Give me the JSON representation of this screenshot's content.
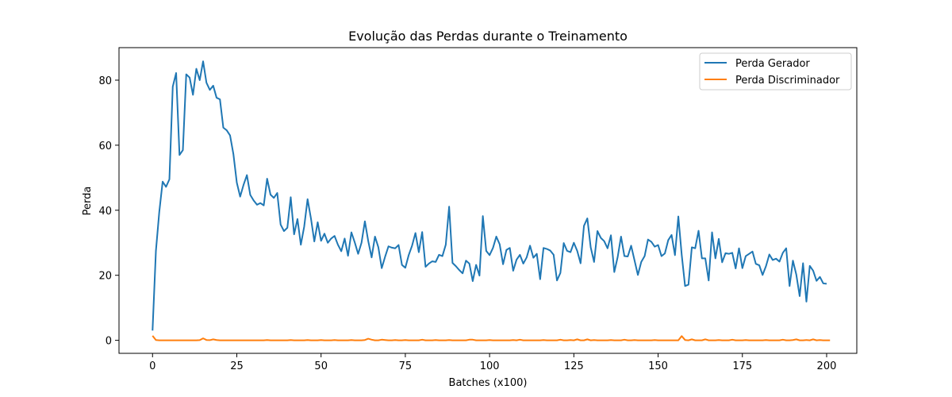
{
  "chart_data": {
    "type": "line",
    "title": "Evolução das Perdas durante o Treinamento",
    "xlabel": "Batches (x100)",
    "ylabel": "Perda",
    "xlim": [
      -9.95,
      208.95
    ],
    "ylim": [
      -4.0,
      90.0
    ],
    "xticks": [
      0,
      25,
      50,
      75,
      100,
      125,
      150,
      175,
      200
    ],
    "yticks": [
      0,
      20,
      40,
      60,
      80
    ],
    "grid": false,
    "legend_position": "top-right",
    "series": [
      {
        "name": "Perda Gerador",
        "color": "#1f77b4",
        "values": [
          3.0,
          27.5,
          39.5,
          48.8,
          47.2,
          49.5,
          78.0,
          82.2,
          57.0,
          58.5,
          81.8,
          80.8,
          75.5,
          83.5,
          80.0,
          85.8,
          79.2,
          77.0,
          78.3,
          74.6,
          74.1,
          65.4,
          64.6,
          63.0,
          57.2,
          48.5,
          44.2,
          47.8,
          50.8,
          44.7,
          43.0,
          41.7,
          42.2,
          41.5,
          49.7,
          44.8,
          43.8,
          45.3,
          35.6,
          33.6,
          34.6,
          44.0,
          32.6,
          37.3,
          29.4,
          35.0,
          43.4,
          37.5,
          30.4,
          36.3,
          30.6,
          32.8,
          30.0,
          31.3,
          32.1,
          29.4,
          27.4,
          31.3,
          26.0,
          33.2,
          30.1,
          26.6,
          30.0,
          36.6,
          30.5,
          25.5,
          31.9,
          28.6,
          22.2,
          25.7,
          28.9,
          28.5,
          28.3,
          29.3,
          23.2,
          22.3,
          26.2,
          29.1,
          33.0,
          27.1,
          33.3,
          22.6,
          23.6,
          24.3,
          24.1,
          26.3,
          25.9,
          29.4,
          41.1,
          23.8,
          22.8,
          21.6,
          20.6,
          24.5,
          23.6,
          18.2,
          23.2,
          19.9,
          38.2,
          27.5,
          26.2,
          28.4,
          31.9,
          29.5,
          23.4,
          27.8,
          28.4,
          21.4,
          24.8,
          26.3,
          23.6,
          25.5,
          29.1,
          25.4,
          26.6,
          18.8,
          28.4,
          28.1,
          27.6,
          26.3,
          18.4,
          20.7,
          29.9,
          27.5,
          27.1,
          30.0,
          27.5,
          23.7,
          35.2,
          37.5,
          28.6,
          24.1,
          33.6,
          31.5,
          30.5,
          28.3,
          32.3,
          21.0,
          25.6,
          31.9,
          25.9,
          25.8,
          29.1,
          24.6,
          20.1,
          24.1,
          25.9,
          31.0,
          30.3,
          28.8,
          29.3,
          25.9,
          26.7,
          30.8,
          32.4,
          26.2,
          38.1,
          26.3,
          16.7,
          17.1,
          28.6,
          28.3,
          33.7,
          25.2,
          25.2,
          18.4,
          33.2,
          25.2,
          31.2,
          24.0,
          26.8,
          26.6,
          26.9,
          22.1,
          28.3,
          22.2,
          25.9,
          26.6,
          27.3,
          23.5,
          23.1,
          20.1,
          22.8,
          26.4,
          24.7,
          25.1,
          24.2,
          26.9,
          28.3,
          16.7,
          24.5,
          20.2,
          13.6,
          23.7,
          11.9,
          22.9,
          21.4,
          18.3,
          19.5,
          17.5,
          17.4
        ]
      },
      {
        "name": "Perda Discriminador",
        "color": "#ff7f0e",
        "values": [
          1.4,
          0.1,
          0.0,
          0.0,
          0.0,
          0.0,
          0.0,
          0.0,
          0.0,
          0.0,
          0.0,
          0.0,
          0.0,
          0.0,
          0.05,
          0.6,
          0.1,
          0.05,
          0.3,
          0.1,
          0.0,
          0.0,
          0.0,
          0.0,
          0.0,
          0.0,
          0.0,
          0.0,
          0.0,
          0.0,
          0.0,
          0.0,
          0.0,
          0.0,
          0.1,
          0.0,
          0.0,
          0.0,
          0.0,
          0.0,
          0.0,
          0.1,
          0.0,
          0.0,
          0.0,
          0.0,
          0.1,
          0.0,
          0.0,
          0.0,
          0.1,
          0.0,
          0.0,
          0.0,
          0.1,
          0.0,
          0.0,
          0.0,
          0.0,
          0.1,
          0.0,
          0.0,
          0.0,
          0.1,
          0.5,
          0.2,
          0.0,
          0.0,
          0.2,
          0.1,
          0.0,
          0.0,
          0.1,
          0.0,
          0.0,
          0.1,
          0.0,
          0.0,
          0.0,
          0.0,
          0.2,
          0.0,
          0.0,
          0.0,
          0.1,
          0.0,
          0.0,
          0.0,
          0.1,
          0.0,
          0.0,
          0.0,
          0.0,
          0.0,
          0.2,
          0.2,
          0.0,
          0.0,
          0.0,
          0.0,
          0.1,
          0.0,
          0.0,
          0.0,
          0.0,
          0.0,
          0.0,
          0.1,
          0.0,
          0.2,
          0.0,
          0.0,
          0.0,
          0.0,
          0.0,
          0.0,
          0.1,
          0.0,
          0.0,
          0.0,
          0.0,
          0.2,
          0.0,
          0.0,
          0.1,
          0.0,
          0.3,
          0.0,
          0.0,
          0.3,
          0.0,
          0.1,
          0.0,
          0.0,
          0.0,
          0.0,
          0.1,
          0.0,
          0.0,
          0.0,
          0.2,
          0.0,
          0.0,
          0.1,
          0.0,
          0.0,
          0.0,
          0.0,
          0.0,
          0.1,
          0.0,
          0.0,
          0.0,
          0.0,
          0.0,
          0.0,
          0.0,
          1.3,
          0.1,
          0.0,
          0.3,
          0.0,
          0.0,
          0.0,
          0.3,
          0.0,
          0.0,
          0.0,
          0.1,
          0.0,
          0.0,
          0.0,
          0.2,
          0.0,
          0.0,
          0.0,
          0.1,
          0.0,
          0.0,
          0.0,
          0.0,
          0.0,
          0.1,
          0.0,
          0.0,
          0.0,
          0.0,
          0.2,
          0.0,
          0.0,
          0.1,
          0.3,
          0.0,
          0.0,
          0.1,
          0.0,
          0.3,
          0.0,
          0.1,
          0.0,
          0.0,
          0.0
        ]
      }
    ]
  }
}
